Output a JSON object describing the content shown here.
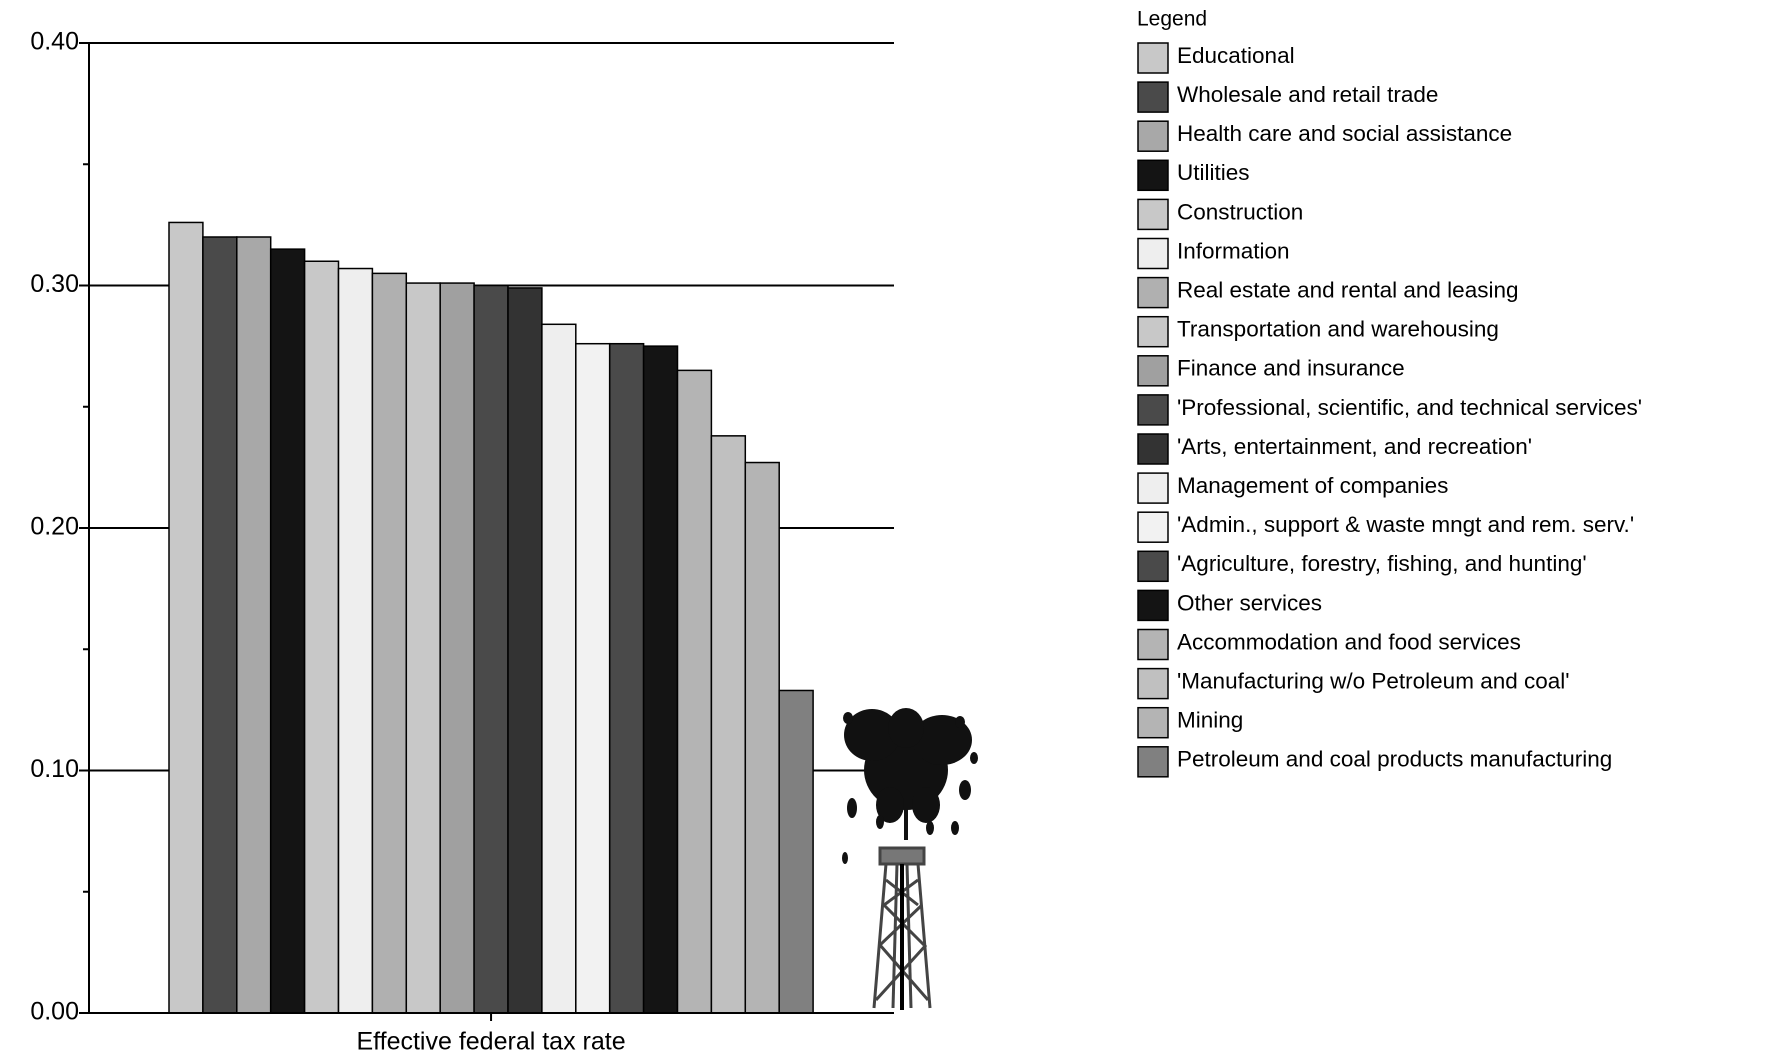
{
  "chart_data": {
    "type": "bar",
    "categories": [
      "Effective federal tax rate"
    ],
    "legend_title": "Legend",
    "legend_position": "right",
    "grid": true,
    "ylim": [
      0,
      0.4
    ],
    "yticks": [
      {
        "value": 0,
        "label": "0.00"
      },
      {
        "value": 0.1,
        "label": "0.10"
      },
      {
        "value": 0.2,
        "label": "0.20"
      },
      {
        "value": 0.3,
        "label": "0.30"
      },
      {
        "value": 0.4,
        "label": "0.40"
      }
    ],
    "minor_yticks": [
      0.05,
      0.15,
      0.25,
      0.35
    ],
    "series": [
      {
        "name": "Educational",
        "color": "#c8c8c8",
        "values": [
          0.326
        ]
      },
      {
        "name": "Wholesale and retail trade",
        "color": "#4a4a4a",
        "values": [
          0.32
        ]
      },
      {
        "name": "Health care and social assistance",
        "color": "#a8a8a8",
        "values": [
          0.32
        ]
      },
      {
        "name": "Utilities",
        "color": "#141414",
        "values": [
          0.315
        ]
      },
      {
        "name": "Construction",
        "color": "#c8c8c8",
        "values": [
          0.31
        ]
      },
      {
        "name": "Information",
        "color": "#eeeeee",
        "values": [
          0.307
        ]
      },
      {
        "name": "Real estate and rental and leasing",
        "color": "#b0b0b0",
        "values": [
          0.305
        ]
      },
      {
        "name": "Transportation and warehousing",
        "color": "#c8c8c8",
        "values": [
          0.301
        ]
      },
      {
        "name": "Finance and insurance",
        "color": "#a0a0a0",
        "values": [
          0.301
        ]
      },
      {
        "name": "'Professional, scientific, and technical services'",
        "color": "#4a4a4a",
        "values": [
          0.3
        ]
      },
      {
        "name": "'Arts, entertainment, and recreation'",
        "color": "#333333",
        "values": [
          0.299
        ]
      },
      {
        "name": "Management of companies",
        "color": "#eeeeee",
        "values": [
          0.284
        ]
      },
      {
        "name": "'Admin., support & waste mngt and rem. serv.'",
        "color": "#f2f2f2",
        "values": [
          0.276
        ]
      },
      {
        "name": "'Agriculture, forestry, fishing, and hunting'",
        "color": "#4a4a4a",
        "values": [
          0.276
        ]
      },
      {
        "name": "Other services",
        "color": "#141414",
        "values": [
          0.275
        ]
      },
      {
        "name": "Accommodation and food services",
        "color": "#b4b4b4",
        "values": [
          0.265
        ]
      },
      {
        "name": "'Manufacturing w/o Petroleum and coal'",
        "color": "#c0c0c0",
        "values": [
          0.238
        ]
      },
      {
        "name": "Mining",
        "color": "#b4b4b4",
        "values": [
          0.227
        ]
      },
      {
        "name": "Petroleum and coal products manufacturing",
        "color": "#808080",
        "values": [
          0.133
        ]
      }
    ]
  }
}
